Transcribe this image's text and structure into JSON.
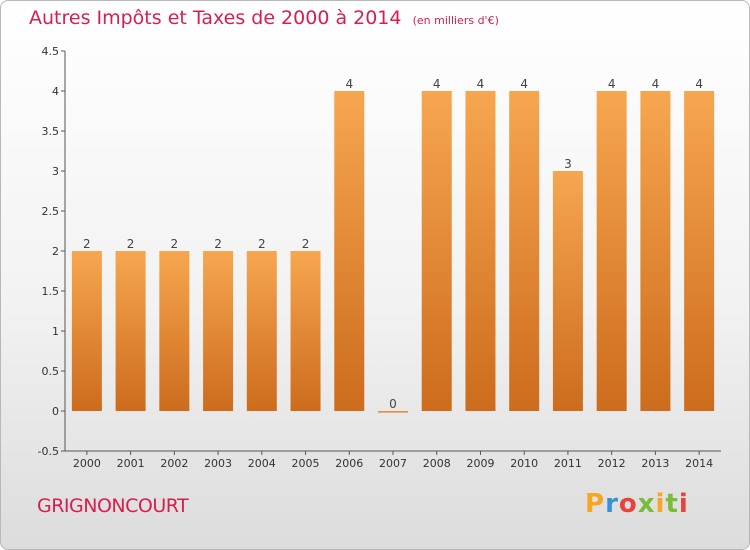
{
  "chart_data": {
    "type": "bar",
    "title": "Autres Impôts et Taxes de 2000 à 2014",
    "subtitle": "(en milliers d'€)",
    "categories": [
      "2000",
      "2001",
      "2002",
      "2003",
      "2004",
      "2005",
      "2006",
      "2007",
      "2008",
      "2009",
      "2010",
      "2011",
      "2012",
      "2013",
      "2014"
    ],
    "values": [
      2,
      2,
      2,
      2,
      2,
      2,
      4,
      0,
      4,
      4,
      4,
      3,
      4,
      4,
      4
    ],
    "ylim": [
      -0.5,
      4.5
    ],
    "yticks": [
      "-0.5",
      "0",
      "0.5",
      "1",
      "1.5",
      "2",
      "2.5",
      "3",
      "3.5",
      "4",
      "4.5"
    ],
    "grid": false,
    "bar_color": "#f0a050"
  },
  "footer": {
    "city": "GRIGNONCOURT",
    "logo": "Proxiti"
  }
}
